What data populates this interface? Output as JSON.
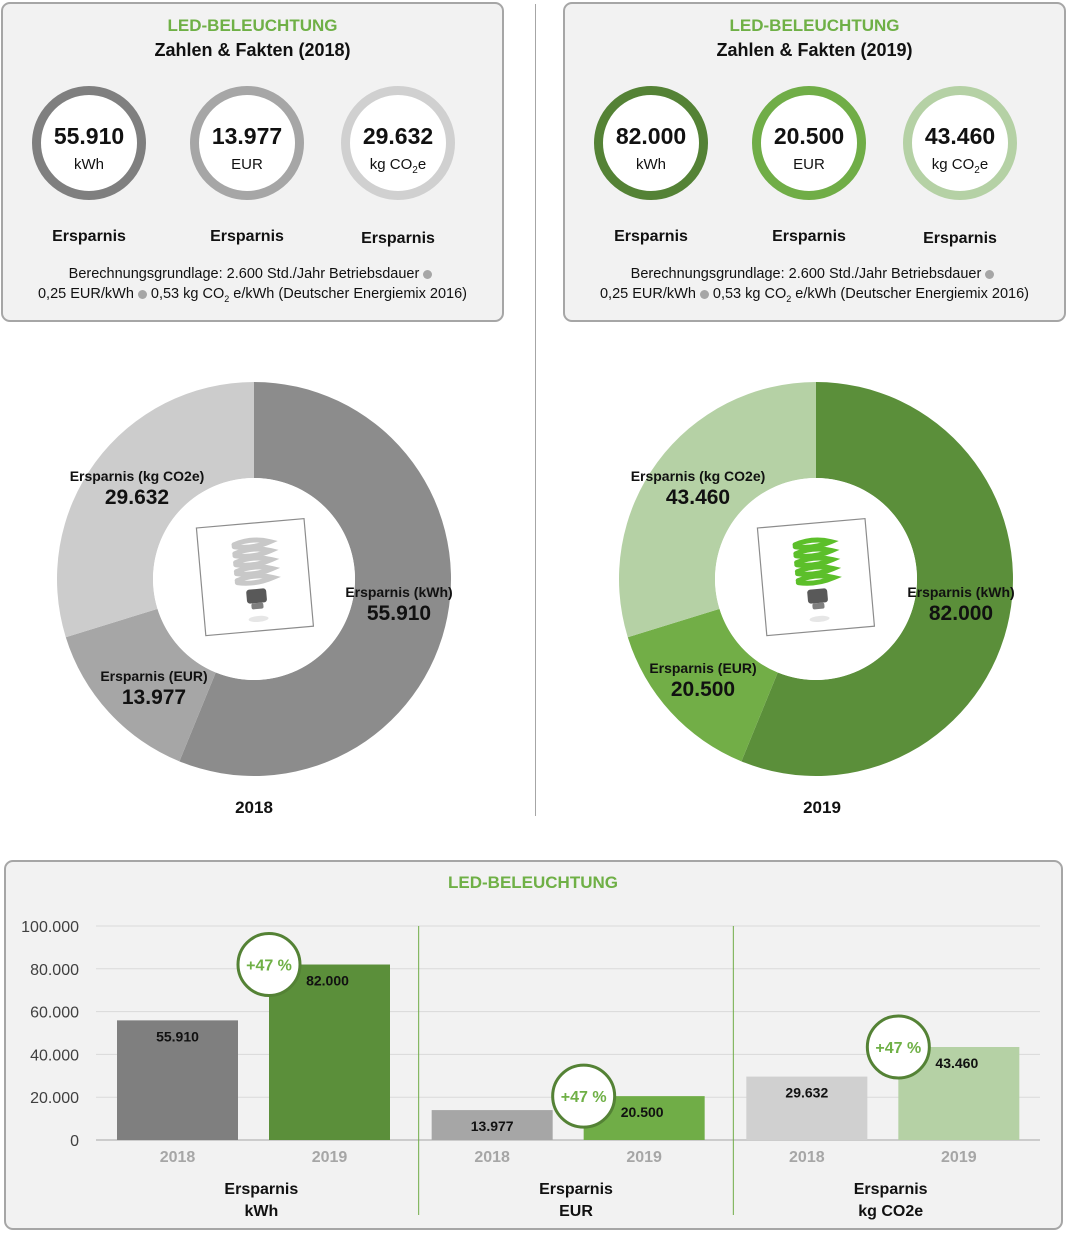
{
  "facts": [
    {
      "title": "LED-BELEUCHTUNG",
      "subtitle": "Zahlen & Fakten (2018)",
      "rings": [
        {
          "value": "55.910",
          "unit": "kWh",
          "caption": "Ersparnis",
          "color": "#7f7f7f"
        },
        {
          "value": "13.977",
          "unit": "EUR",
          "caption": "Ersparnis",
          "color": "#a6a6a6"
        },
        {
          "value": "29.632",
          "unit_pre": "kg CO",
          "unit_sub": "2",
          "unit_post": "e",
          "caption": "Ersparnis",
          "color": "#d0d0d0"
        }
      ],
      "basis_line1": "Berechnungsgrundlage: 2.600 Std./Jahr Betriebsdauer",
      "basis_line2a": "0,25 EUR/kWh",
      "basis_line2b": "0,53 kg CO",
      "basis_sub": "2",
      "basis_line2c": " e/kWh (Deutscher Energiemix 2016)"
    },
    {
      "title": "LED-BELEUCHTUNG",
      "subtitle": "Zahlen & Fakten (2019)",
      "rings": [
        {
          "value": "82.000",
          "unit": "kWh",
          "caption": "Ersparnis",
          "color": "#548235"
        },
        {
          "value": "20.500",
          "unit": "EUR",
          "caption": "Ersparnis",
          "color": "#70ad47"
        },
        {
          "value": "43.460",
          "unit_pre": "kg CO",
          "unit_sub": "2",
          "unit_post": "e",
          "caption": "Ersparnis",
          "color": "#b5d1a5"
        }
      ],
      "basis_line1": "Berechnungsgrundlage: 2.600 Std./Jahr Betriebsdauer",
      "basis_line2a": "0,25 EUR/kWh",
      "basis_line2b": "0,53 kg CO",
      "basis_sub": "2",
      "basis_line2c": " e/kWh (Deutscher Energiemix 2016)"
    }
  ],
  "chart_data": [
    {
      "type": "pie",
      "title": "2018",
      "slices": [
        {
          "name": "Ersparnis (kWh)",
          "value": 55910,
          "label": "55.910",
          "color": "#8c8c8c"
        },
        {
          "name": "Ersparnis (EUR)",
          "value": 13977,
          "label": "13.977",
          "color": "#a6a6a6"
        },
        {
          "name": "Ersparnis (kg CO2e)",
          "value": 29632,
          "label": "29.632",
          "color": "#cccccc"
        }
      ],
      "bulb_color": "#c8c8c8"
    },
    {
      "type": "pie",
      "title": "2019",
      "slices": [
        {
          "name": "Ersparnis (kWh)",
          "value": 82000,
          "label": "82.000",
          "color": "#5b8f3a"
        },
        {
          "name": "Ersparnis (EUR)",
          "value": 20500,
          "label": "20.500",
          "color": "#72ae47"
        },
        {
          "name": "Ersparnis (kg CO2e)",
          "value": 43460,
          "label": "43.460",
          "color": "#b5d1a5"
        }
      ],
      "bulb_color": "#5cbf2a"
    },
    {
      "type": "bar",
      "title": "LED-BELEUCHTUNG",
      "ylim": [
        0,
        100000
      ],
      "yticks": [
        0,
        20000,
        40000,
        60000,
        80000,
        100000
      ],
      "ytick_labels": [
        "0",
        "20.000",
        "40.000",
        "60.000",
        "80.000",
        "100.000"
      ],
      "groups": [
        {
          "label1": "Ersparnis",
          "label2": "kWh",
          "badge": "+47 %",
          "bars": [
            {
              "year": "2018",
              "value": 55910,
              "label": "55.910",
              "color": "#7f7f7f"
            },
            {
              "year": "2019",
              "value": 82000,
              "label": "82.000",
              "color": "#5b8f3a"
            }
          ]
        },
        {
          "label1": "Ersparnis",
          "label2": "EUR",
          "badge": "+47 %",
          "bars": [
            {
              "year": "2018",
              "value": 13977,
              "label": "13.977",
              "color": "#a6a6a6"
            },
            {
              "year": "2019",
              "value": 20500,
              "label": "20.500",
              "color": "#70ad47"
            }
          ]
        },
        {
          "label1": "Ersparnis",
          "label2": "kg CO2e",
          "badge": "+47 %",
          "bars": [
            {
              "year": "2018",
              "value": 29632,
              "label": "29.632",
              "color": "#d0d0d0"
            },
            {
              "year": "2019",
              "value": 43460,
              "label": "43.460",
              "color": "#b5d1a5"
            }
          ]
        }
      ],
      "grid": true
    }
  ]
}
